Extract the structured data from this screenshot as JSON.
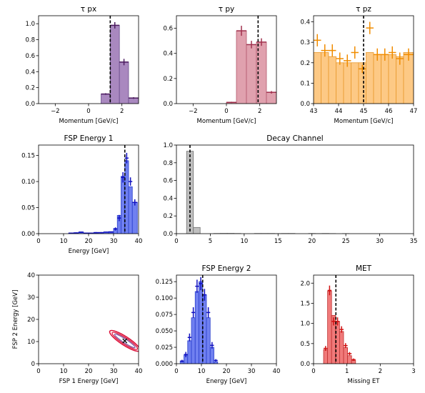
{
  "chart_data": [
    {
      "id": "tau_px",
      "type": "bar",
      "title": "τ px",
      "xlabel": "Momentum [GeV/c]",
      "ylabel": "",
      "xlim": [
        -3,
        3
      ],
      "ylim": [
        0,
        1.1
      ],
      "xticks": [
        -2,
        0,
        2
      ],
      "yticks": [
        0.0,
        0.2,
        0.4,
        0.6,
        0.8,
        1.0
      ],
      "bin_edges": [
        0.75,
        1.3,
        1.85,
        2.4,
        3.0
      ],
      "values": [
        0.12,
        0.98,
        0.52,
        0.07
      ],
      "errors": [
        0.01,
        0.04,
        0.04,
        0.01
      ],
      "vline": 1.3,
      "fill": "#a988bf",
      "edge": "#6a4d8c",
      "point_color": "#4b1a5e"
    },
    {
      "id": "tau_py",
      "type": "bar",
      "title": "τ py",
      "xlabel": "Momentum [GeV/c]",
      "ylabel": "",
      "xlim": [
        -3,
        3
      ],
      "ylim": [
        0,
        0.7
      ],
      "xticks": [
        -2,
        0,
        2
      ],
      "yticks": [
        0.0,
        0.2,
        0.4,
        0.6
      ],
      "bin_edges": [
        0.0,
        0.6,
        1.2,
        1.8,
        2.4,
        3.0
      ],
      "values": [
        0.01,
        0.58,
        0.47,
        0.49,
        0.09
      ],
      "errors": [
        0.005,
        0.04,
        0.03,
        0.03,
        0.01
      ],
      "vline": 1.9,
      "fill": "#e0a1ae",
      "edge": "#b45a6e",
      "point_color": "#a0304d"
    },
    {
      "id": "tau_pz",
      "type": "bar",
      "title": "τ pz",
      "xlabel": "Momentum [GeV/c]",
      "ylabel": "",
      "xlim": [
        43,
        47
      ],
      "ylim": [
        0,
        0.43
      ],
      "xticks": [
        43,
        44,
        45,
        46,
        47
      ],
      "yticks": [
        0.0,
        0.1,
        0.2,
        0.3,
        0.4
      ],
      "bin_edges": [
        43.0,
        43.3,
        43.6,
        43.9,
        44.2,
        44.5,
        44.8,
        45.1,
        45.4,
        45.7,
        46.0,
        46.3,
        46.6,
        47.0
      ],
      "values": [
        0.25,
        0.25,
        0.23,
        0.2,
        0.2,
        0.2,
        0.2,
        0.25,
        0.24,
        0.24,
        0.24,
        0.23,
        0.25
      ],
      "points": [
        0.31,
        0.26,
        0.26,
        0.22,
        0.21,
        0.25,
        0.17,
        0.37,
        0.24,
        0.24,
        0.25,
        0.22,
        0.24
      ],
      "errors": [
        0.03,
        0.03,
        0.03,
        0.03,
        0.03,
        0.03,
        0.02,
        0.03,
        0.03,
        0.03,
        0.03,
        0.03,
        0.03
      ],
      "vline": 45.0,
      "fill": "#fdc985",
      "edge": "#e8982c",
      "point_color": "#f08c00"
    },
    {
      "id": "fsp_energy_1",
      "type": "bar",
      "title": "FSP Energy 1",
      "xlabel": "Energy [GeV]",
      "ylabel": "",
      "xlim": [
        0,
        40
      ],
      "ylim": [
        0,
        0.17
      ],
      "xticks": [
        0,
        10,
        20,
        30,
        40
      ],
      "yticks": [
        0.0,
        0.05,
        0.1,
        0.15
      ],
      "bin_edges": [
        0,
        2,
        4,
        6,
        8,
        10,
        12,
        14,
        16,
        18,
        20,
        22,
        24,
        26,
        28,
        30,
        31.5,
        33,
        34.5,
        36,
        37.5,
        39.5
      ],
      "values": [
        0,
        0,
        0,
        0,
        0,
        0,
        0.001,
        0.001,
        0.002,
        0.001,
        0.001,
        0.001,
        0.002,
        0.003,
        0.004,
        0.01,
        0.035,
        0.11,
        0.14,
        0.09,
        0.06
      ],
      "points": [
        0,
        0,
        0,
        0,
        0,
        0,
        0.001,
        0.0015,
        0.003,
        0.001,
        0.001,
        0.002,
        0.002,
        0.003,
        0.003,
        0.009,
        0.03,
        0.108,
        0.145,
        0.1,
        0.06
      ],
      "errors": [
        0,
        0,
        0,
        0,
        0,
        0,
        0.001,
        0.001,
        0.001,
        0.001,
        0.001,
        0.001,
        0.001,
        0.001,
        0.001,
        0.003,
        0.006,
        0.01,
        0.01,
        0.008,
        0.006
      ],
      "vline": 34.5,
      "fill": "#7080f0",
      "edge": "#2a3ecc",
      "point_color": "#1010c0"
    },
    {
      "id": "decay_channel",
      "type": "bar",
      "title": "Decay Channel",
      "xlabel": "",
      "ylabel": "",
      "xlim": [
        0,
        35
      ],
      "ylim": [
        0,
        1.0
      ],
      "xticks": [
        0,
        5,
        10,
        15,
        20,
        25,
        30,
        35
      ],
      "yticks": [
        0.0,
        0.2,
        0.4,
        0.6,
        0.8,
        1.0
      ],
      "bin_edges": [
        1.5,
        2.5,
        3.5,
        4.5,
        5.5,
        6.5,
        7.5,
        8.5,
        9.5,
        10.5,
        11.5,
        12.5,
        13.5,
        14.5,
        15.5,
        16.5,
        17.5,
        18.5,
        19.5,
        20.5,
        21.5,
        22.5,
        23.5,
        24.5,
        25.5,
        26.5,
        27.5,
        28.5,
        29.5,
        30.5,
        31.5,
        32.5,
        33.5,
        34.5
      ],
      "values": [
        0.93,
        0.07,
        0.0,
        0.0,
        0.002,
        0.003,
        0.003,
        0.002,
        0.0,
        0.0,
        0.002,
        0.002,
        0.002,
        0.001,
        0.002,
        0.002,
        0.0,
        0.0,
        0.002,
        0.001,
        0.002,
        0.001,
        0.0,
        0.001,
        0.0,
        0.0,
        0.0,
        0.0,
        0.0,
        0.0,
        0.0,
        0.0,
        0.0
      ],
      "vline": 2.0,
      "fill": "#c0c0c0",
      "edge": "#707070"
    },
    {
      "id": "fsp_2d",
      "type": "scatter",
      "title": "",
      "xlabel": "FSP 1 Energy [GeV]",
      "ylabel": "FSP 2 Energy [GeV]",
      "xlim": [
        0,
        40
      ],
      "ylim": [
        0,
        40
      ],
      "xticks": [
        0,
        10,
        20,
        30,
        40
      ],
      "yticks": [
        0,
        10,
        20,
        30,
        40
      ],
      "center": [
        34.5,
        10.3
      ],
      "contour_color": "#dc143c",
      "inner_color": "#7a4fa0"
    },
    {
      "id": "fsp_energy_2",
      "type": "bar",
      "title": "FSP Energy 2",
      "xlabel": "Energy [GeV]",
      "ylabel": "",
      "xlim": [
        0,
        40
      ],
      "ylim": [
        0,
        0.135
      ],
      "xticks": [
        0,
        10,
        20,
        30,
        40
      ],
      "yticks": [
        0.0,
        0.025,
        0.05,
        0.075,
        0.1,
        0.125
      ],
      "bin_edges": [
        1.5,
        3.0,
        4.5,
        6.0,
        7.5,
        9.0,
        10.5,
        12.0,
        13.5,
        15.0,
        16.5
      ],
      "values": [
        0.004,
        0.013,
        0.035,
        0.07,
        0.11,
        0.125,
        0.105,
        0.07,
        0.025,
        0.003
      ],
      "points": [
        0.004,
        0.014,
        0.04,
        0.078,
        0.118,
        0.122,
        0.105,
        0.078,
        0.028,
        0.005
      ],
      "errors": [
        0.002,
        0.004,
        0.006,
        0.008,
        0.01,
        0.01,
        0.009,
        0.008,
        0.005,
        0.002
      ],
      "vline": 10.5,
      "fill": "#7080f0",
      "edge": "#2a3ecc",
      "point_color": "#1010c0"
    },
    {
      "id": "met",
      "type": "bar",
      "title": "MET",
      "xlabel": "Missing ET",
      "ylabel": "",
      "xlim": [
        0,
        3
      ],
      "ylim": [
        0,
        2.2
      ],
      "xticks": [
        0,
        1,
        2,
        3
      ],
      "yticks": [
        0.0,
        0.5,
        1.0,
        1.5,
        2.0
      ],
      "bin_edges": [
        0.3,
        0.42,
        0.54,
        0.66,
        0.78,
        0.9,
        1.02,
        1.14,
        1.26
      ],
      "values": [
        0.35,
        1.8,
        1.2,
        1.05,
        0.8,
        0.4,
        0.2,
        0.08
      ],
      "points": [
        0.38,
        1.82,
        1.05,
        1.05,
        0.85,
        0.45,
        0.25,
        0.1
      ],
      "errors": [
        0.06,
        0.12,
        0.1,
        0.1,
        0.08,
        0.06,
        0.04,
        0.03
      ],
      "vline": 0.67,
      "fill": "#f07a7a",
      "edge": "#c03030",
      "point_color": "#d01010"
    }
  ]
}
